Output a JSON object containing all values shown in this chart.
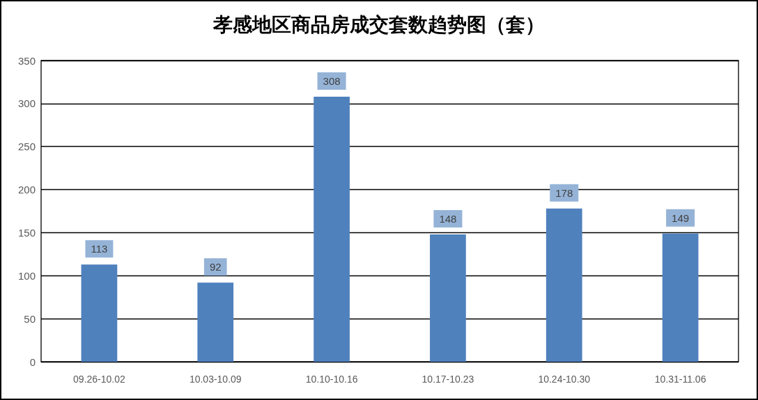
{
  "chart_data": {
    "type": "bar",
    "title": "孝感地区商品房成交套数趋势图（套）",
    "categories": [
      "09.26-10.02",
      "10.03-10.09",
      "10.10-10.16",
      "10.17-10.23",
      "10.24-10.30",
      "10.31-11.06"
    ],
    "values": [
      113,
      92,
      308,
      148,
      178,
      149
    ],
    "color": "#4f81bd",
    "ylim": [
      0,
      350
    ],
    "yticks": [
      0,
      50,
      100,
      150,
      200,
      250,
      300,
      350
    ],
    "grid": "y",
    "data_labels": true
  }
}
